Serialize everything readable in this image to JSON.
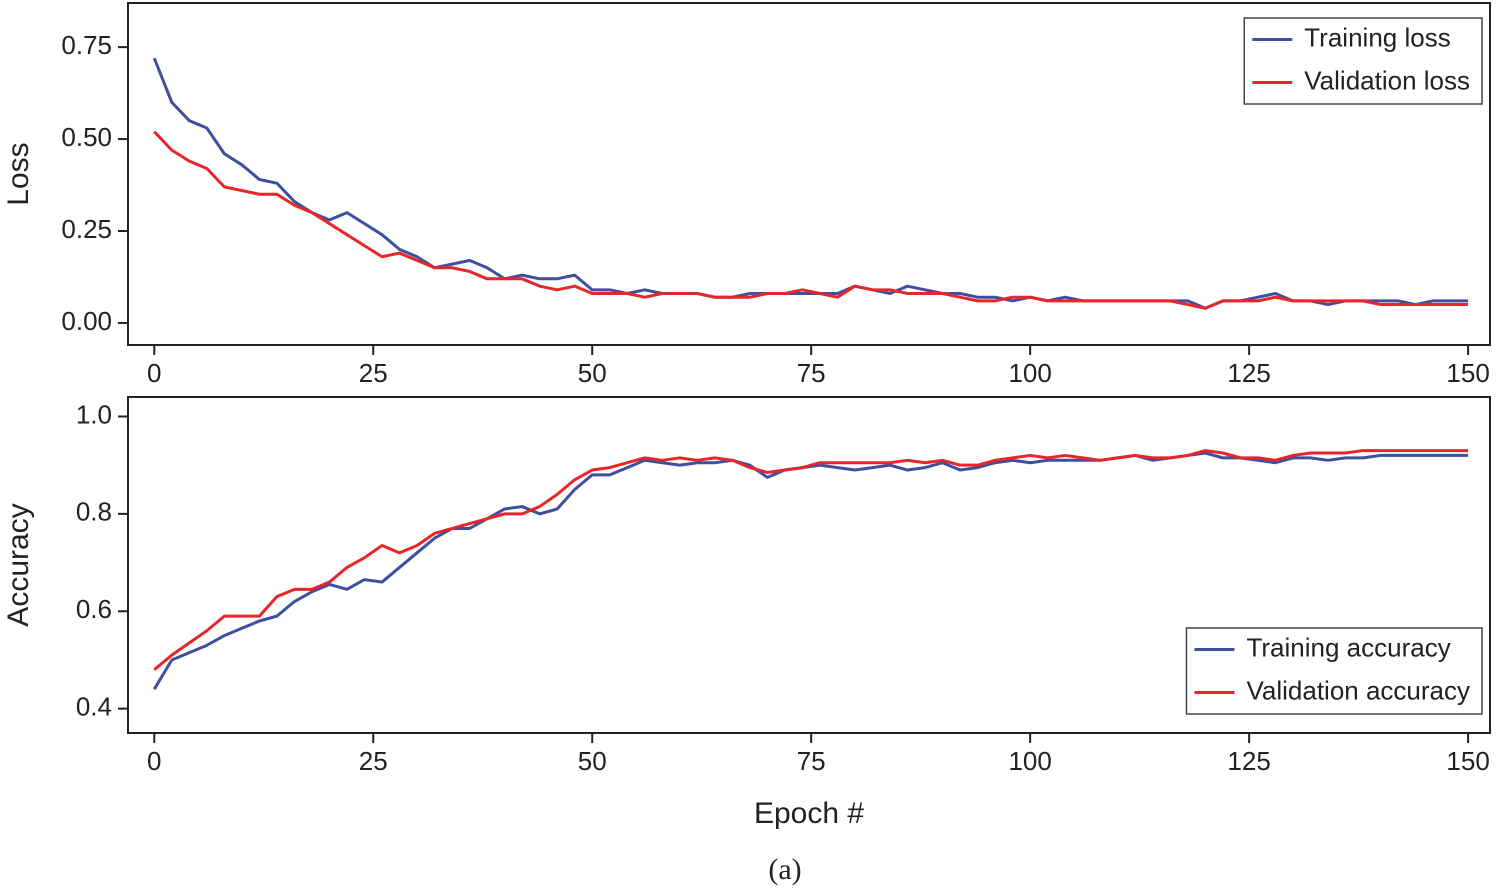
{
  "caption": "(a)",
  "chart_data": [
    {
      "type": "line",
      "ylabel": "Loss",
      "x": [
        0,
        2,
        4,
        6,
        8,
        10,
        12,
        14,
        16,
        18,
        20,
        22,
        24,
        26,
        28,
        30,
        32,
        34,
        36,
        38,
        40,
        42,
        44,
        46,
        48,
        50,
        52,
        54,
        56,
        58,
        60,
        62,
        64,
        66,
        68,
        70,
        72,
        74,
        76,
        78,
        80,
        82,
        84,
        86,
        88,
        90,
        92,
        94,
        96,
        98,
        100,
        102,
        104,
        106,
        108,
        110,
        112,
        114,
        116,
        118,
        120,
        122,
        124,
        126,
        128,
        130,
        132,
        134,
        136,
        138,
        140,
        142,
        144,
        146,
        148,
        150
      ],
      "series": [
        {
          "name": "Training loss",
          "color": "#3f4fa0",
          "values": [
            0.72,
            0.6,
            0.55,
            0.53,
            0.46,
            0.43,
            0.39,
            0.38,
            0.33,
            0.3,
            0.28,
            0.3,
            0.27,
            0.24,
            0.2,
            0.18,
            0.15,
            0.16,
            0.17,
            0.15,
            0.12,
            0.13,
            0.12,
            0.12,
            0.13,
            0.09,
            0.09,
            0.08,
            0.09,
            0.08,
            0.08,
            0.08,
            0.07,
            0.07,
            0.08,
            0.08,
            0.08,
            0.08,
            0.08,
            0.08,
            0.1,
            0.09,
            0.08,
            0.1,
            0.09,
            0.08,
            0.08,
            0.07,
            0.07,
            0.06,
            0.07,
            0.06,
            0.07,
            0.06,
            0.06,
            0.06,
            0.06,
            0.06,
            0.06,
            0.06,
            0.04,
            0.06,
            0.06,
            0.07,
            0.08,
            0.06,
            0.06,
            0.05,
            0.06,
            0.06,
            0.06,
            0.06,
            0.05,
            0.06,
            0.06,
            0.06
          ]
        },
        {
          "name": "Validation loss",
          "color": "#e8262a",
          "values": [
            0.52,
            0.47,
            0.44,
            0.42,
            0.37,
            0.36,
            0.35,
            0.35,
            0.32,
            0.3,
            0.27,
            0.24,
            0.21,
            0.18,
            0.19,
            0.17,
            0.15,
            0.15,
            0.14,
            0.12,
            0.12,
            0.12,
            0.1,
            0.09,
            0.1,
            0.08,
            0.08,
            0.08,
            0.07,
            0.08,
            0.08,
            0.08,
            0.07,
            0.07,
            0.07,
            0.08,
            0.08,
            0.09,
            0.08,
            0.07,
            0.1,
            0.09,
            0.09,
            0.08,
            0.08,
            0.08,
            0.07,
            0.06,
            0.06,
            0.07,
            0.07,
            0.06,
            0.06,
            0.06,
            0.06,
            0.06,
            0.06,
            0.06,
            0.06,
            0.05,
            0.04,
            0.06,
            0.06,
            0.06,
            0.07,
            0.06,
            0.06,
            0.06,
            0.06,
            0.06,
            0.05,
            0.05,
            0.05,
            0.05,
            0.05,
            0.05
          ]
        }
      ],
      "xlim": [
        -3,
        152.5
      ],
      "xticks": [
        0,
        25,
        50,
        75,
        100,
        125,
        150
      ],
      "ylim": [
        -0.06,
        0.87
      ],
      "yticks": [
        {
          "value": 0,
          "label": "0.00"
        },
        0.25,
        {
          "value": 0.5,
          "label": "0.50"
        },
        0.75
      ],
      "legend": "upper right"
    },
    {
      "type": "line",
      "ylabel": "Accuracy",
      "xlabel": "Epoch #",
      "x": [
        0,
        2,
        4,
        6,
        8,
        10,
        12,
        14,
        16,
        18,
        20,
        22,
        24,
        26,
        28,
        30,
        32,
        34,
        36,
        38,
        40,
        42,
        44,
        46,
        48,
        50,
        52,
        54,
        56,
        58,
        60,
        62,
        64,
        66,
        68,
        70,
        72,
        74,
        76,
        78,
        80,
        82,
        84,
        86,
        88,
        90,
        92,
        94,
        96,
        98,
        100,
        102,
        104,
        106,
        108,
        110,
        112,
        114,
        116,
        118,
        120,
        122,
        124,
        126,
        128,
        130,
        132,
        134,
        136,
        138,
        140,
        142,
        144,
        146,
        148,
        150
      ],
      "series": [
        {
          "name": "Training accuracy",
          "color": "#3f4fa0",
          "values": [
            0.44,
            0.5,
            0.515,
            0.53,
            0.55,
            0.565,
            0.58,
            0.59,
            0.62,
            0.64,
            0.655,
            0.645,
            0.665,
            0.66,
            0.69,
            0.72,
            0.75,
            0.77,
            0.77,
            0.79,
            0.81,
            0.815,
            0.8,
            0.81,
            0.85,
            0.88,
            0.88,
            0.895,
            0.91,
            0.905,
            0.9,
            0.905,
            0.905,
            0.91,
            0.9,
            0.875,
            0.89,
            0.895,
            0.9,
            0.895,
            0.89,
            0.895,
            0.9,
            0.89,
            0.895,
            0.905,
            0.89,
            0.895,
            0.905,
            0.91,
            0.905,
            0.91,
            0.91,
            0.91,
            0.91,
            0.915,
            0.92,
            0.91,
            0.915,
            0.92,
            0.925,
            0.915,
            0.915,
            0.91,
            0.905,
            0.915,
            0.915,
            0.91,
            0.915,
            0.915,
            0.92,
            0.92,
            0.92,
            0.92,
            0.92,
            0.92
          ]
        },
        {
          "name": "Validation accuracy",
          "color": "#e8262a",
          "values": [
            0.48,
            0.51,
            0.535,
            0.56,
            0.59,
            0.59,
            0.59,
            0.63,
            0.645,
            0.645,
            0.66,
            0.69,
            0.71,
            0.735,
            0.72,
            0.735,
            0.76,
            0.77,
            0.78,
            0.79,
            0.8,
            0.8,
            0.815,
            0.84,
            0.87,
            0.89,
            0.895,
            0.905,
            0.915,
            0.91,
            0.915,
            0.91,
            0.915,
            0.91,
            0.895,
            0.885,
            0.89,
            0.895,
            0.905,
            0.905,
            0.905,
            0.905,
            0.905,
            0.91,
            0.905,
            0.91,
            0.9,
            0.9,
            0.91,
            0.915,
            0.92,
            0.915,
            0.92,
            0.915,
            0.91,
            0.915,
            0.92,
            0.915,
            0.915,
            0.92,
            0.93,
            0.925,
            0.915,
            0.915,
            0.91,
            0.92,
            0.925,
            0.925,
            0.925,
            0.93,
            0.93,
            0.93,
            0.93,
            0.93,
            0.93,
            0.93
          ]
        }
      ],
      "xlim": [
        -3,
        152.5
      ],
      "xticks": [
        0,
        25,
        50,
        75,
        100,
        125,
        150
      ],
      "ylim": [
        0.35,
        1.04
      ],
      "yticks": [
        0.4,
        0.6,
        0.8,
        {
          "value": 1,
          "label": "1.0"
        }
      ],
      "legend": "lower right"
    }
  ]
}
